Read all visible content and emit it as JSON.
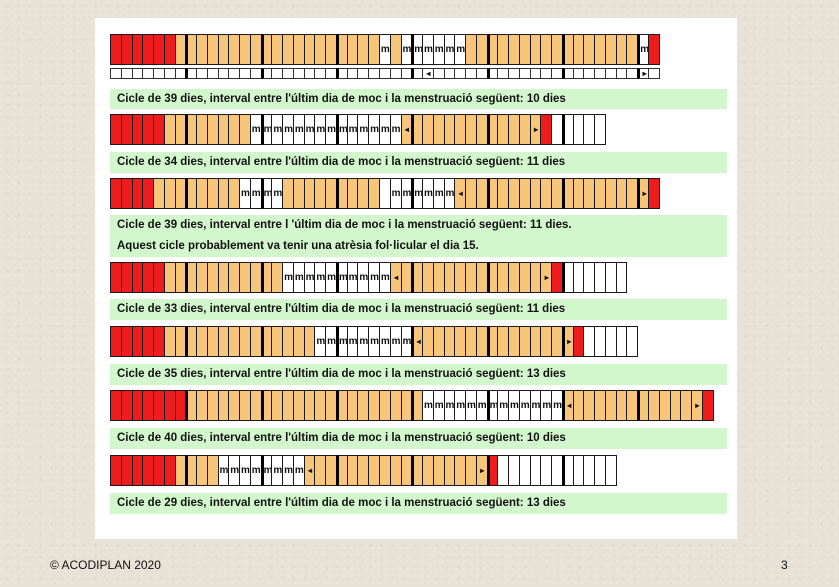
{
  "colors": {
    "menstruation": "#ee1c1c",
    "dry": "#f8c67a",
    "mucus": "#ffffff",
    "caption_bg": "#d3f7cd"
  },
  "footer": {
    "copyright": "© ACODIPLAN 2020",
    "page_number": "3"
  },
  "cycles": [
    {
      "length_days": 39,
      "cells": "RRRRRRTTTTTTTTTTTTTTTTTTTmTmmmmmmTTTTTTTTTTTTTTTTmR",
      "captions": [
        "Cicle de 39 dies, interval entre l'últim dia de moc i la menstruació següent: 10 dies"
      ]
    },
    {
      "length_days": 34,
      "cells": "RRRRRTTTTTTTTmmmmmmmmmmmmmm<TTTTTTTTTTT>RWWWWW",
      "captions": [
        "Cicle de 34 dies, interval entre l'últim dia de moc i la menstruació següent: 11 dies"
      ]
    },
    {
      "length_days": 39,
      "cells": "RRRRTTTTTTTTmmmmTTTTTTTTTWmmmmmm<TTTTTTTTTTTTTTTT>R",
      "captions": [
        "Cicle de 39 dies, interval entre l 'últim dia de moc i la menstruació següent: 11 dies.",
        "Aquest cicle probablement va tenir una atrèsia fol·licular el dia 15."
      ]
    },
    {
      "length_days": 33,
      "cells": "RRRRRTTTTTTTTTTTmmmmmmmmmm<TTTTTTTTTTTTT>RWWWWWW",
      "captions": [
        "Cicle de 33 dies, interval entre l'últim dia de moc i la menstruació següent: 11 dies"
      ]
    },
    {
      "length_days": 35,
      "cells": "RRRRRTTTTTTTTTTTTTTmmmmmmmmm<TTTTTTTTTTTTT>RWWWWW",
      "captions": [
        "Cicle de 35 dies, interval entre l'últim dia de moc i la menstruació següent: 13 dies"
      ]
    },
    {
      "length_days": 40,
      "cells": "RRRRRRRTTTTTTTTTTTTTTTTTTTTTTmmmmmmmmmmmmm<TTTTTTTTTTT>R",
      "captions": [
        "Cicle de 40 dies, interval entre l'últim dia de moc i la menstruació següent: 10 dies"
      ]
    },
    {
      "length_days": 29,
      "cells": "RRRRRRTTTTmmmmmmmm<TTTTTTTTTTTTTTT>RWWWWWWWWWWW",
      "captions": [
        "Cicle de 29 dies, interval entre l'últim dia de moc i la menstruació següent: 13 dies"
      ]
    }
  ]
}
